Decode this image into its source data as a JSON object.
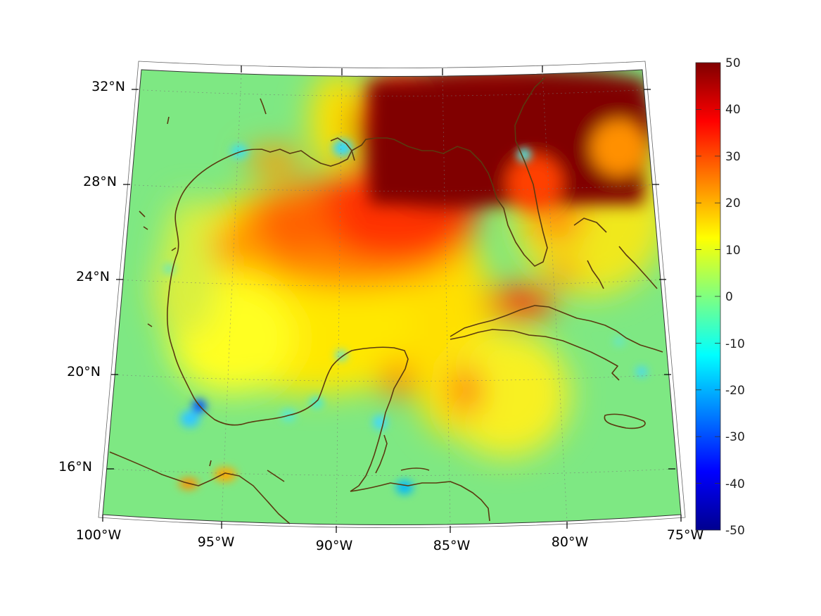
{
  "map": {
    "projection": "conic",
    "lon_range": [
      -100,
      -75
    ],
    "lat_range": [
      14,
      33
    ],
    "lat_labels": [
      "32°N",
      "28°N",
      "24°N",
      "20°N",
      "16°N"
    ],
    "lon_labels": [
      "100°W",
      "95°W",
      "90°W",
      "85°W",
      "80°W",
      "75°W"
    ],
    "grid_lines": "dotted",
    "coastline_color": "#5a3a10"
  },
  "colorbar": {
    "colormap": "jet",
    "min": -50,
    "max": 50,
    "tick_labels": [
      "50",
      "40",
      "30",
      "20",
      "10",
      "0",
      "-10",
      "-20",
      "-30",
      "-40",
      "-50"
    ]
  }
}
